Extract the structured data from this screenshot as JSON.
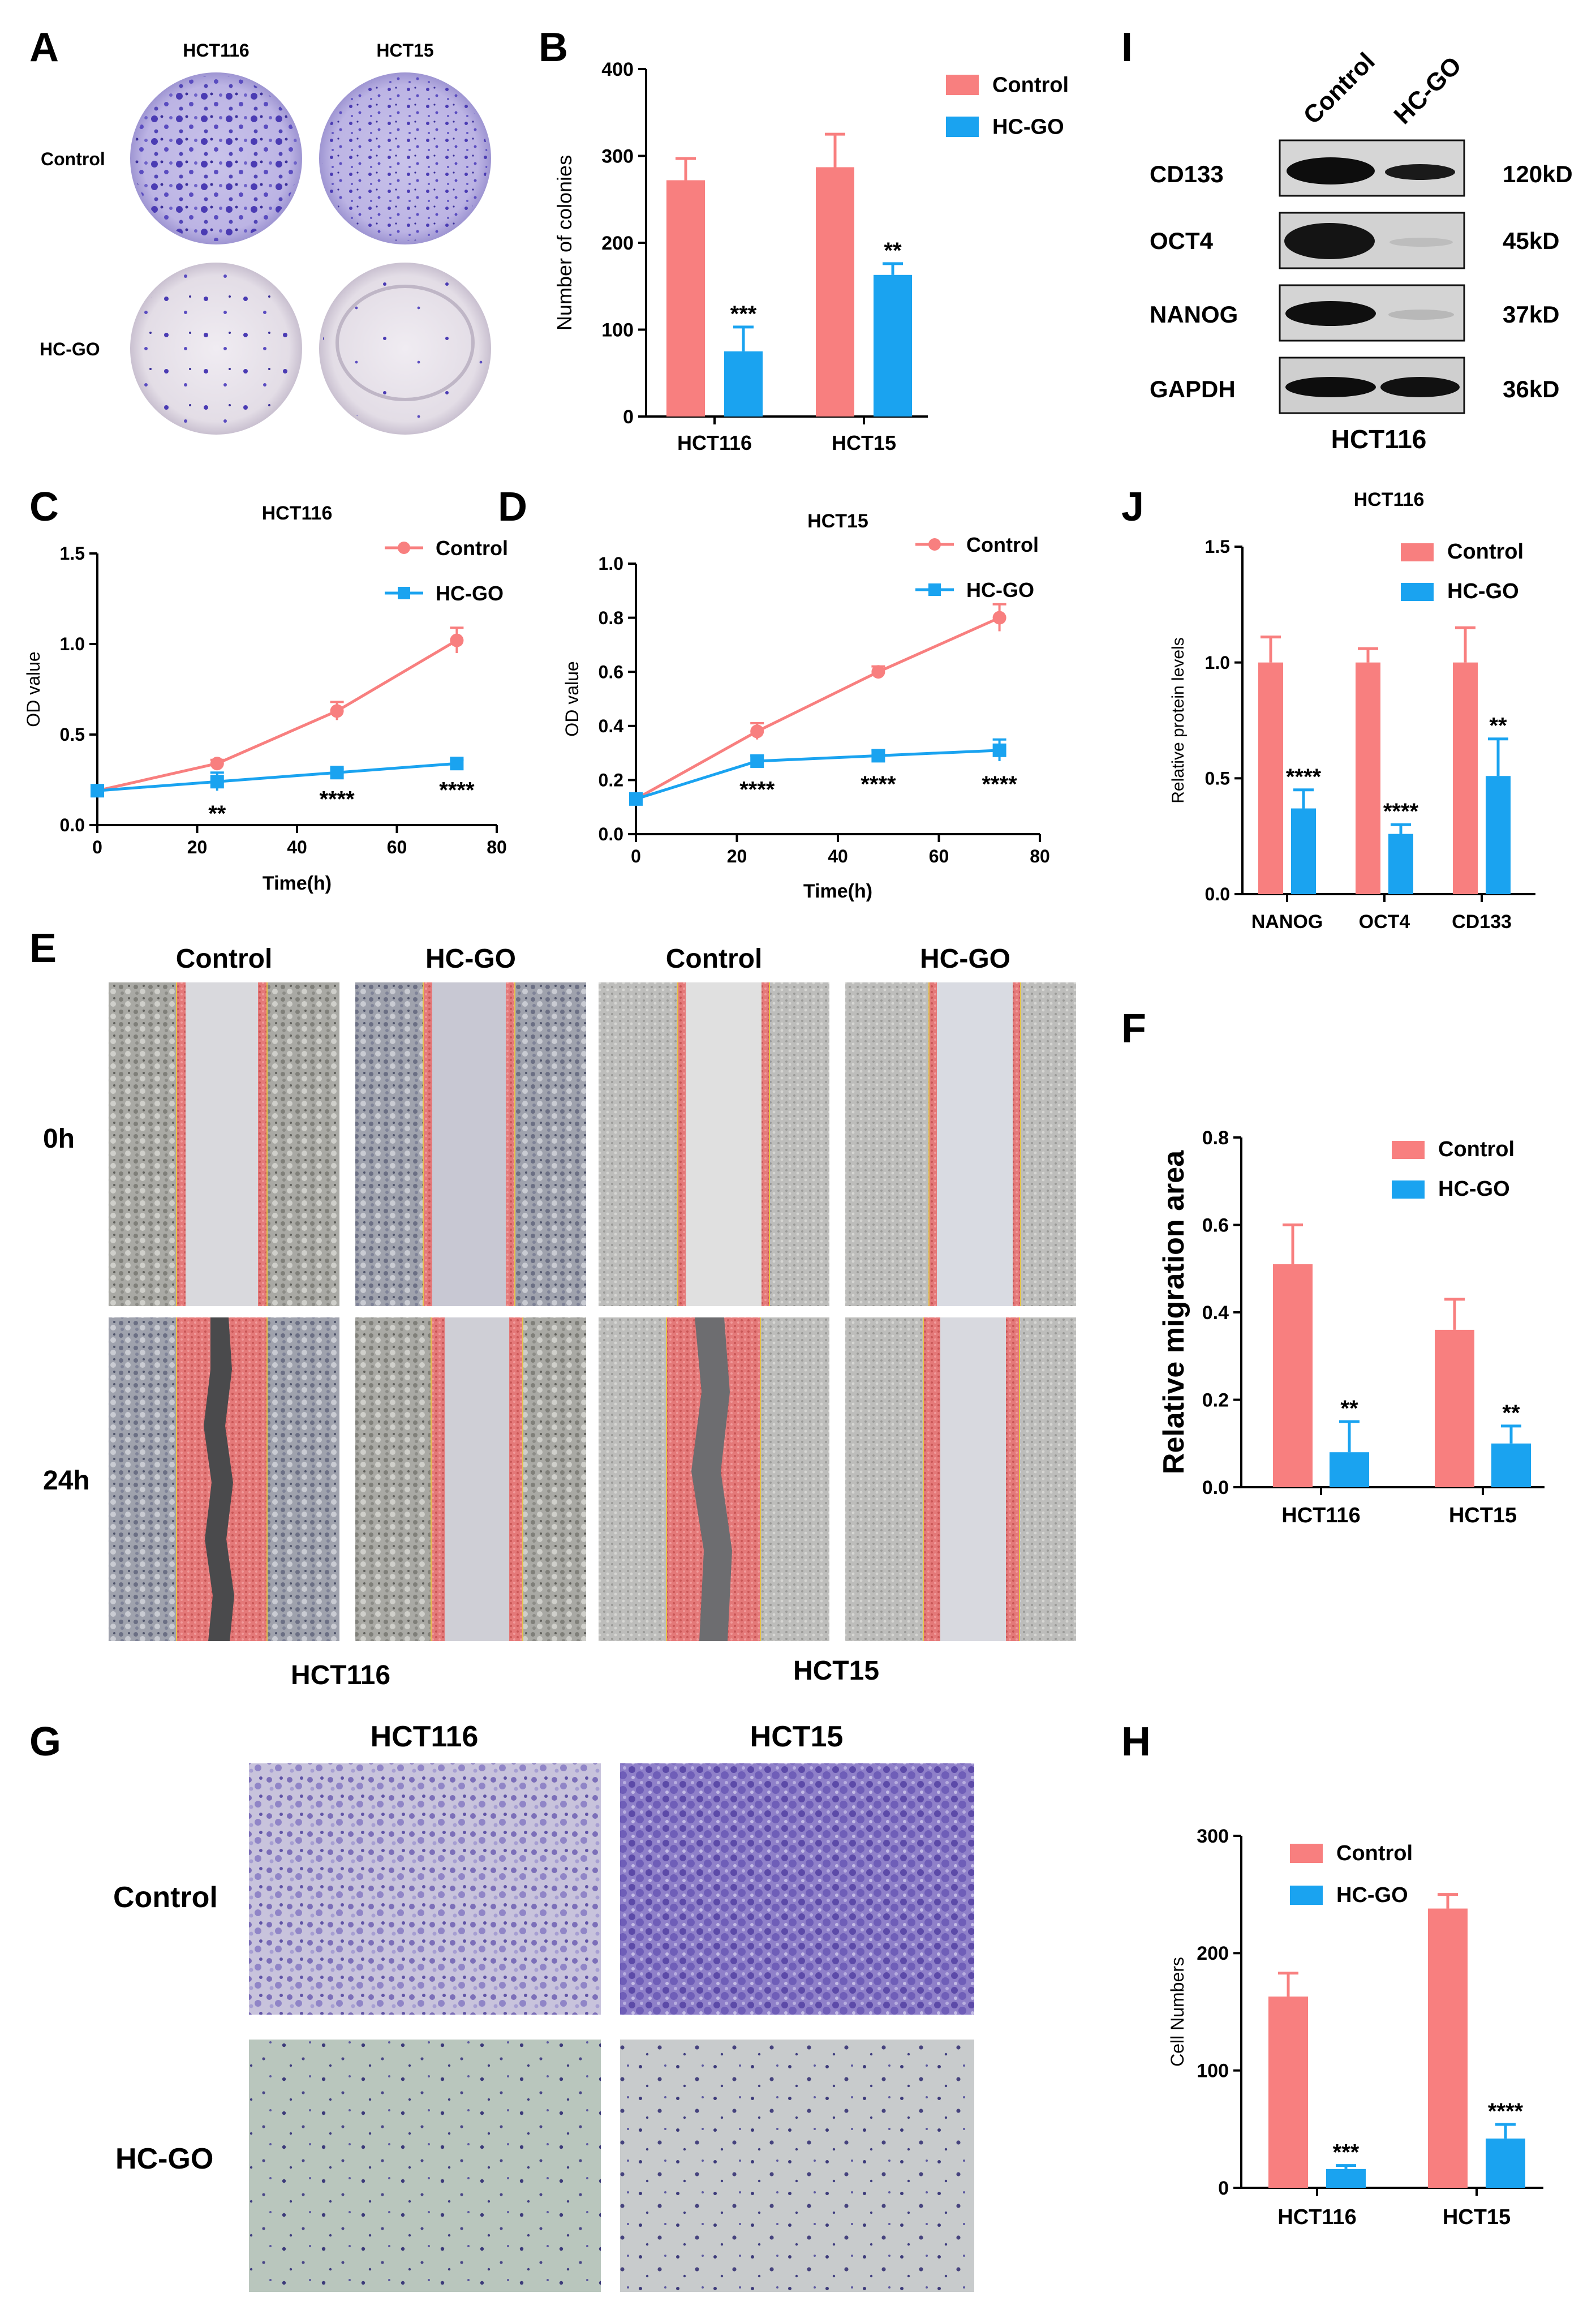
{
  "panels": {
    "A": "A",
    "B": "B",
    "C": "C",
    "D": "D",
    "E": "E",
    "F": "F",
    "G": "G",
    "H": "H",
    "I": "I",
    "J": "J"
  },
  "colors": {
    "control": "#f87f7f",
    "hcgo": "#1aa3f0",
    "wb_band": "#111111",
    "wb_bg": "#d8d8d8"
  },
  "panel_a": {
    "col_labels": [
      "HCT116",
      "HCT15"
    ],
    "row_labels": [
      "Control",
      "HC-GO"
    ]
  },
  "panel_e": {
    "col_labels": [
      "Control",
      "HC-GO",
      "Control",
      "HC-GO"
    ],
    "row_labels": [
      "0h",
      "24h"
    ],
    "group_labels": [
      "HCT116",
      "HCT15"
    ]
  },
  "panel_g": {
    "col_labels": [
      "HCT116",
      "HCT15"
    ],
    "row_labels": [
      "Control",
      "HC-GO"
    ]
  },
  "panel_i": {
    "lanes": [
      "Control",
      "HC-GO"
    ],
    "proteins": [
      "CD133",
      "OCT4",
      "NANOG",
      "GAPDH"
    ],
    "sizes": [
      "120kD",
      "45kD",
      "37kD",
      "36kD"
    ],
    "cell_line": "HCT116"
  },
  "chart_data": [
    {
      "id": "B",
      "type": "bar",
      "title": "",
      "xlabel": "",
      "ylabel": "Number of colonies",
      "ylim": [
        0,
        400
      ],
      "yticks": [
        0,
        100,
        200,
        300,
        400
      ],
      "categories": [
        "HCT116",
        "HCT15"
      ],
      "series": [
        {
          "name": "Control",
          "values": [
            272,
            287
          ],
          "errors": [
            25,
            38
          ]
        },
        {
          "name": "HC-GO",
          "values": [
            75,
            163
          ],
          "errors": [
            28,
            13
          ]
        }
      ],
      "annotations": [
        "***",
        "**"
      ],
      "legend": "top-right"
    },
    {
      "id": "C",
      "type": "line",
      "title": "HCT116",
      "xlabel": "Time(h)",
      "ylabel": "OD value",
      "xlim": [
        0,
        80
      ],
      "xticks": [
        0,
        20,
        40,
        60,
        80
      ],
      "ylim": [
        0,
        1.5
      ],
      "yticks": [
        0.0,
        0.5,
        1.0,
        1.5
      ],
      "x": [
        0,
        24,
        48,
        72
      ],
      "series": [
        {
          "name": "Control",
          "values": [
            0.19,
            0.34,
            0.63,
            1.02
          ],
          "errors": [
            0.02,
            0.02,
            0.05,
            0.07
          ]
        },
        {
          "name": "HC-GO",
          "values": [
            0.19,
            0.24,
            0.29,
            0.34
          ],
          "errors": [
            0.02,
            0.05,
            0.02,
            0.02
          ]
        }
      ],
      "annotations": [
        "**",
        "****",
        "****"
      ],
      "legend": "top-right"
    },
    {
      "id": "D",
      "type": "line",
      "title": "HCT15",
      "xlabel": "Time(h)",
      "ylabel": "OD value",
      "xlim": [
        0,
        80
      ],
      "xticks": [
        0,
        20,
        40,
        60,
        80
      ],
      "ylim": [
        0,
        1.0
      ],
      "yticks": [
        0.0,
        0.2,
        0.4,
        0.6,
        0.8,
        1.0
      ],
      "x": [
        0,
        24,
        48,
        72
      ],
      "series": [
        {
          "name": "Control",
          "values": [
            0.13,
            0.38,
            0.6,
            0.8
          ],
          "errors": [
            0.01,
            0.03,
            0.02,
            0.05
          ]
        },
        {
          "name": "HC-GO",
          "values": [
            0.13,
            0.27,
            0.29,
            0.31
          ],
          "errors": [
            0.01,
            0.02,
            0.02,
            0.04
          ]
        }
      ],
      "annotations": [
        "****",
        "****",
        "****"
      ],
      "legend": "top-right"
    },
    {
      "id": "J",
      "type": "bar",
      "title": "HCT116",
      "xlabel": "",
      "ylabel": "Relative protein levels",
      "ylim": [
        0,
        1.5
      ],
      "yticks": [
        0.0,
        0.5,
        1.0,
        1.5
      ],
      "categories": [
        "NANOG",
        "OCT4",
        "CD133"
      ],
      "series": [
        {
          "name": "Control",
          "values": [
            1.0,
            1.0,
            1.0
          ],
          "errors": [
            0.11,
            0.06,
            0.15
          ]
        },
        {
          "name": "HC-GO",
          "values": [
            0.37,
            0.26,
            0.51
          ],
          "errors": [
            0.08,
            0.04,
            0.16
          ]
        }
      ],
      "annotations": [
        "****",
        "****",
        "**"
      ],
      "legend": "top-right"
    },
    {
      "id": "F",
      "type": "bar",
      "title": "",
      "xlabel": "",
      "ylabel": "Relative migration area",
      "ylim": [
        0,
        0.8
      ],
      "yticks": [
        0.0,
        0.2,
        0.4,
        0.6,
        0.8
      ],
      "categories": [
        "HCT116",
        "HCT15"
      ],
      "series": [
        {
          "name": "Control",
          "values": [
            0.51,
            0.36
          ],
          "errors": [
            0.09,
            0.07
          ]
        },
        {
          "name": "HC-GO",
          "values": [
            0.08,
            0.1
          ],
          "errors": [
            0.07,
            0.04
          ]
        }
      ],
      "annotations": [
        "**",
        "**"
      ],
      "legend": "top-right"
    },
    {
      "id": "H",
      "type": "bar",
      "title": "",
      "xlabel": "",
      "ylabel": "Cell Numbers",
      "ylim": [
        0,
        300
      ],
      "yticks": [
        0,
        100,
        200,
        300
      ],
      "categories": [
        "HCT116",
        "HCT15"
      ],
      "series": [
        {
          "name": "Control",
          "values": [
            163,
            238
          ],
          "errors": [
            20,
            12
          ]
        },
        {
          "name": "HC-GO",
          "values": [
            16,
            42
          ],
          "errors": [
            3,
            12
          ]
        }
      ],
      "annotations": [
        "***",
        "****"
      ],
      "legend": "top-left"
    }
  ]
}
